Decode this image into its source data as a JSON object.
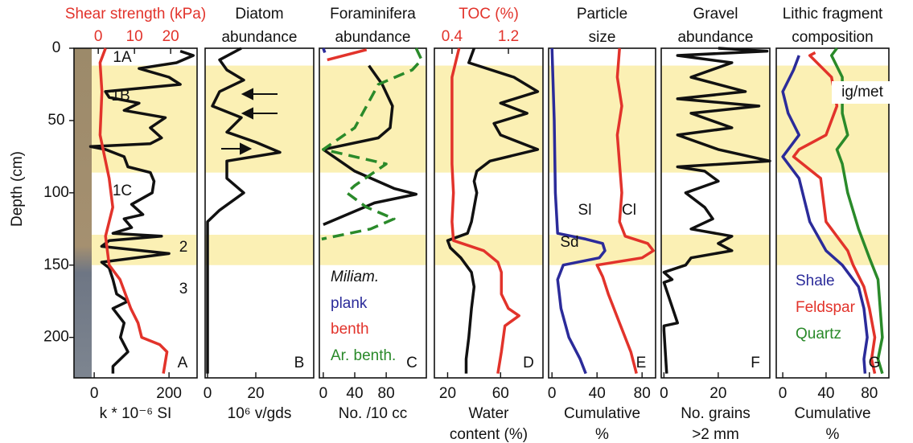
{
  "highlight_depths": [
    [
      12,
      86
    ],
    [
      129,
      150
    ]
  ],
  "highlight_color": "#fbf0b4",
  "chart_data": [
    {
      "type": "line",
      "title": [
        "Shear strength (kPa)"
      ],
      "xlabel": [
        "k * 10⁻⁶ SI"
      ],
      "ylabel": "Depth (cm)",
      "ylim": [
        0,
        228
      ],
      "yticks": [
        0,
        50,
        100,
        150,
        200
      ],
      "xlim": [
        -54,
        275
      ],
      "xticks": [
        0,
        200
      ],
      "panel_label": "A",
      "annotations": [
        "1A",
        "1B",
        "1C",
        "2",
        "3"
      ],
      "series": [
        {
          "color": "#111111",
          "depths": [
            2,
            5,
            10,
            14,
            20,
            25,
            30,
            34,
            38,
            43,
            48,
            55,
            62,
            66,
            68,
            70,
            75,
            82,
            86,
            92,
            100,
            108,
            115,
            118,
            124,
            128,
            130,
            133,
            137,
            142,
            148,
            152,
            160,
            170,
            175,
            180,
            190,
            200,
            210,
            220,
            225
          ],
          "values": [
            230,
            265,
            220,
            120,
            200,
            230,
            30,
            40,
            120,
            80,
            190,
            150,
            180,
            150,
            -10,
            30,
            80,
            90,
            150,
            160,
            155,
            100,
            130,
            80,
            100,
            50,
            180,
            40,
            20,
            200,
            20,
            40,
            50,
            60,
            90,
            50,
            80,
            70,
            90,
            50,
            50
          ]
        }
      ],
      "top_axis": {
        "color": "#e2332b",
        "xlim": [
          -6.7,
          27.3
        ],
        "xticks": [
          0,
          10,
          20
        ],
        "series": [
          {
            "color": "#e2332b",
            "depths": [
              0,
              10,
              30,
              60,
              90,
              110,
              130,
              150,
              160,
              180,
              190,
              200,
              205,
              210,
              225
            ],
            "values": [
              2,
              0.5,
              1,
              0.5,
              3,
              4,
              2,
              3,
              6,
              9,
              11,
              12,
              17,
              19,
              18
            ]
          }
        ]
      }
    },
    {
      "type": "line",
      "title": [
        "Diatom",
        "abundance"
      ],
      "xlabel": [
        "10⁶  v/gds"
      ],
      "ylim": [
        0,
        228
      ],
      "xlim": [
        -1,
        44
      ],
      "xticks": [
        0,
        20
      ],
      "panel_label": "B",
      "series": [
        {
          "color": "#111111",
          "depths": [
            0,
            8,
            15,
            22,
            30,
            40,
            48,
            58,
            65,
            72,
            78,
            90,
            100,
            112,
            120,
            225
          ],
          "values": [
            14,
            5,
            8,
            15,
            5,
            2,
            14,
            8,
            20,
            30,
            8,
            8,
            15,
            5,
            0,
            0
          ]
        }
      ]
    },
    {
      "type": "line",
      "title": [
        "Foraminifera",
        "abundance"
      ],
      "xlabel": [
        "No. /10 cc"
      ],
      "ylim": [
        0,
        228
      ],
      "xlim": [
        -5,
        131
      ],
      "xticks": [
        0,
        40,
        80
      ],
      "panel_label": "C",
      "series": [
        {
          "name": "Miliam.",
          "color": "#111111",
          "depths": [
            12,
            25,
            40,
            55,
            62,
            70,
            85,
            97,
            101,
            107,
            122
          ],
          "values": [
            58,
            75,
            88,
            85,
            70,
            0,
            40,
            90,
            118,
            65,
            0
          ]
        },
        {
          "name": "plank",
          "color": "#2b2b9a",
          "depths": [
            0,
            3
          ],
          "values": [
            0,
            2
          ]
        },
        {
          "name": "benth",
          "color": "#e2332b",
          "depths": [
            1,
            8
          ],
          "values": [
            55,
            5
          ]
        },
        {
          "name": "Ar. benth.",
          "color": "#2a8a2a",
          "dash": true,
          "depths": [
            0,
            8,
            15,
            25,
            40,
            55,
            70,
            75,
            80,
            95,
            100,
            110,
            118,
            125,
            132
          ],
          "values": [
            118,
            125,
            113,
            70,
            55,
            40,
            0,
            40,
            80,
            40,
            30,
            55,
            90,
            60,
            -2
          ]
        }
      ]
    },
    {
      "type": "line",
      "title": [
        "TOC (%)"
      ],
      "xlabel": [
        "Water",
        "content (%)"
      ],
      "ylim": [
        0,
        228
      ],
      "xlim": [
        10,
        92
      ],
      "xticks": [
        20,
        60
      ],
      "panel_label": "D",
      "series": [
        {
          "color": "#111111",
          "depths": [
            0,
            10,
            20,
            30,
            38,
            45,
            52,
            60,
            70,
            78,
            85,
            92,
            100,
            110,
            120,
            128,
            133,
            138,
            145,
            155,
            165,
            180,
            200,
            215,
            225
          ],
          "values": [
            40,
            36,
            70,
            88,
            60,
            80,
            55,
            60,
            88,
            52,
            42,
            40,
            42,
            40,
            38,
            35,
            20,
            22,
            30,
            38,
            40,
            38,
            36,
            34,
            34
          ]
        }
      ],
      "top_axis": {
        "color": "#e2332b",
        "xlim": [
          0.15,
          1.69
        ],
        "xticks": [
          0.4,
          1.2
        ],
        "series": [
          {
            "color": "#e2332b",
            "depths": [
              0,
              10,
              20,
              40,
              60,
              80,
              100,
              120,
              133,
              140,
              148,
              155,
              170,
              180,
              185,
              192,
              210,
              225
            ],
            "values": [
              0.5,
              0.45,
              0.4,
              0.4,
              0.4,
              0.4,
              0.42,
              0.4,
              0.42,
              0.85,
              1.05,
              1.1,
              1.1,
              1.2,
              1.35,
              1.15,
              1.1,
              1.05
            ]
          }
        ]
      }
    },
    {
      "type": "line",
      "title": [
        "Particle",
        "size"
      ],
      "xlabel": [
        "Cumulative",
        "%"
      ],
      "ylim": [
        0,
        228
      ],
      "xlim": [
        -3,
        92
      ],
      "xticks": [
        0,
        40,
        80
      ],
      "panel_label": "E",
      "annotations": [
        "Sl",
        "Cl",
        "Sd"
      ],
      "series": [
        {
          "color": "#2b2b9a",
          "depths": [
            0,
            50,
            100,
            128,
            132,
            135,
            140,
            145,
            150,
            160,
            180,
            200,
            215,
            225
          ],
          "values": [
            0,
            2,
            3,
            5,
            30,
            45,
            47,
            42,
            10,
            5,
            8,
            15,
            25,
            30
          ]
        },
        {
          "color": "#e2332b",
          "depths": [
            0,
            20,
            40,
            60,
            80,
            100,
            120,
            130,
            135,
            140,
            145,
            150,
            158,
            170,
            190,
            210,
            225
          ],
          "values": [
            60,
            58,
            62,
            58,
            60,
            62,
            60,
            65,
            85,
            90,
            80,
            40,
            45,
            50,
            60,
            70,
            75
          ]
        }
      ]
    },
    {
      "type": "line",
      "title": [
        "Gravel",
        "abundance"
      ],
      "xlabel": [
        "No. grains",
        ">2 mm"
      ],
      "ylim": [
        0,
        228
      ],
      "xlim": [
        -1,
        39
      ],
      "xticks": [
        0,
        20
      ],
      "panel_label": "F",
      "series": [
        {
          "color": "#111111",
          "depths": [
            0,
            2,
            5,
            10,
            20,
            30,
            35,
            40,
            45,
            55,
            60,
            70,
            78,
            82,
            85,
            92,
            100,
            110,
            118,
            125,
            130,
            135,
            140,
            145,
            150,
            155,
            160,
            162,
            190,
            192,
            195,
            225
          ],
          "values": [
            20,
            38,
            5,
            25,
            10,
            30,
            5,
            35,
            10,
            25,
            5,
            20,
            39,
            5,
            15,
            20,
            8,
            15,
            18,
            10,
            25,
            20,
            25,
            10,
            8,
            0,
            3,
            0,
            5,
            0,
            0,
            1
          ]
        }
      ]
    },
    {
      "type": "line",
      "title": [
        "Lithic fragment",
        "composition"
      ],
      "xlabel": [
        "Cumulative",
        "%"
      ],
      "ylim": [
        0,
        228
      ],
      "xlim": [
        -6,
        98
      ],
      "xticks": [
        0,
        40,
        80
      ],
      "panel_label": "G",
      "annotations": [
        "ig/met"
      ],
      "series": [
        {
          "name": "Shale",
          "color": "#2b2b9a",
          "depths": [
            5,
            15,
            30,
            45,
            60,
            75,
            90,
            120,
            140,
            150,
            165,
            180,
            200,
            215,
            225
          ],
          "values": [
            15,
            10,
            0,
            5,
            15,
            0,
            15,
            25,
            40,
            55,
            70,
            75,
            78,
            75,
            76
          ]
        },
        {
          "name": "Feldspar",
          "color": "#e2332b",
          "depths": [
            3,
            5,
            20,
            40,
            60,
            70,
            75,
            90,
            120,
            140,
            150,
            165,
            180,
            200,
            215,
            225
          ],
          "values": [
            30,
            25,
            45,
            50,
            40,
            15,
            10,
            35,
            40,
            60,
            65,
            75,
            80,
            85,
            82,
            85
          ]
        },
        {
          "name": "Quartz",
          "color": "#2a8a2a",
          "depths": [
            0,
            5,
            20,
            45,
            60,
            70,
            80,
            100,
            125,
            145,
            160,
            180,
            200,
            215,
            225
          ],
          "values": [
            50,
            45,
            55,
            55,
            60,
            50,
            55,
            60,
            70,
            80,
            88,
            90,
            92,
            88,
            92
          ]
        }
      ]
    }
  ]
}
